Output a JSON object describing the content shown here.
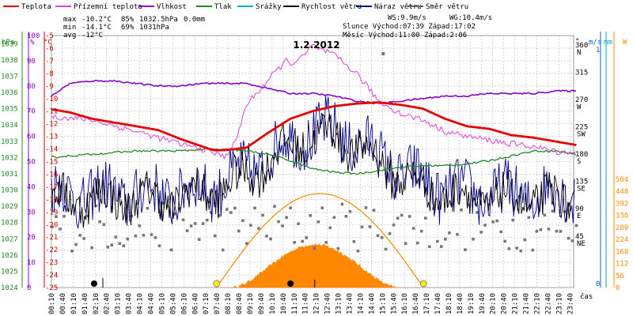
{
  "chart_data": {
    "type": "line",
    "title": "1.2.2012",
    "x_unit": "čas",
    "legend": [
      {
        "name": "Teplota",
        "color": "#e60000"
      },
      {
        "name": "Přízemní teplota",
        "color": "#e040e0"
      },
      {
        "name": "Vlhkost",
        "color": "#8800cc"
      },
      {
        "name": "Tlak",
        "color": "#228822"
      },
      {
        "name": "Srážky",
        "color": "#00aacc"
      },
      {
        "name": "Rychlost větru",
        "color": "#000000"
      },
      {
        "name": "Náraz větru",
        "color": "#000088"
      },
      {
        "name": "Směr větru",
        "color": "#666666"
      }
    ],
    "stats": {
      "max": {
        "label": "max",
        "temp": "-10.2°C",
        "hum": "85%",
        "press": "1032.5hPa",
        "rain": "0.0mm"
      },
      "min": {
        "label": "min",
        "temp": "-14.1°C",
        "hum": "69%",
        "press": "1031hPa"
      },
      "avg": {
        "label": "avg",
        "temp": "-12°C"
      },
      "ws": "WS:9.9m/s",
      "wg": "WG:10.4m/s",
      "sun": "Slunce Východ:07:39  Západ:17:02",
      "moon": "Měsíc  Východ:11:00  Západ:2:06"
    },
    "axes": {
      "hpa": {
        "label": "hPa",
        "color": "#228822",
        "ticks": [
          "1039",
          "1038",
          "1037",
          "1036",
          "1035",
          "1034",
          "1033",
          "1032",
          "1031",
          "1030",
          "1029",
          "1028",
          "1027",
          "1026",
          "1025",
          "1024"
        ]
      },
      "hum": {
        "label": "%",
        "color": "#8800cc",
        "ticks": [
          "100",
          "90",
          "80",
          "70",
          "60",
          "50",
          "40",
          "30",
          "20",
          "10",
          "0"
        ]
      },
      "temp": {
        "label": "°C",
        "color": "#cc0000",
        "ticks": [
          "-5",
          "-6",
          "-7",
          "-8",
          "-9",
          "-10",
          "-11",
          "-12",
          "-13",
          "-14",
          "-15",
          "-16",
          "-17",
          "-18",
          "-19",
          "-20",
          "-21",
          "-22",
          "-23",
          "-24",
          "-25"
        ],
        "range": [
          -25,
          -5
        ]
      },
      "dir": {
        "label": "°",
        "ticks": [
          "360",
          "315",
          "270",
          "225",
          "180",
          "135",
          "90",
          "45"
        ],
        "cards": [
          "N",
          "",
          "W",
          "SW",
          "S",
          "SE",
          "E",
          "NE"
        ]
      },
      "wind": {
        "label": "m/s",
        "color": "#0066cc",
        "ticks": [
          "0",
          "1"
        ]
      },
      "rain": {
        "label": "mm",
        "color": "#00aacc"
      },
      "solar": {
        "label": "W",
        "color": "#ff8800",
        "ticks": [
          "504",
          "448",
          "392",
          "336",
          "280",
          "224",
          "168",
          "112",
          "56",
          "0"
        ]
      }
    },
    "x_ticks": [
      "00:10",
      "00:40",
      "01:10",
      "01:40",
      "02:10",
      "02:40",
      "03:10",
      "03:40",
      "04:10",
      "04:40",
      "05:10",
      "05:40",
      "06:10",
      "06:40",
      "07:10",
      "07:40",
      "08:10",
      "08:40",
      "09:10",
      "09:40",
      "10:10",
      "10:40",
      "11:10",
      "11:40",
      "12:10",
      "12:40",
      "13:10",
      "13:40",
      "14:10",
      "14:40",
      "15:10",
      "15:40",
      "16:10",
      "16:40",
      "17:10",
      "17:40",
      "18:10",
      "18:40",
      "19:10",
      "19:40",
      "20:10",
      "20:40",
      "21:10",
      "21:40",
      "22:10",
      "22:40",
      "23:10",
      "23:40"
    ],
    "series": {
      "temperature": {
        "hours": [
          0,
          1,
          2,
          3,
          4,
          5,
          6,
          7,
          7.5,
          8,
          9,
          10,
          11,
          12,
          13,
          14,
          15,
          16,
          17,
          18,
          19,
          20,
          21,
          22,
          23,
          24
        ],
        "values": [
          -10.8,
          -11.1,
          -11.6,
          -11.9,
          -12.2,
          -12.5,
          -13.2,
          -13.8,
          -14.1,
          -14.1,
          -13.9,
          -12.7,
          -11.6,
          -11,
          -10.6,
          -10.4,
          -10.3,
          -10.5,
          -10.8,
          -11.6,
          -12.2,
          -12.4,
          -12.9,
          -13.1,
          -13.4,
          -13.7
        ]
      },
      "ground_temperature": {
        "hours": [
          0,
          2,
          4,
          6,
          7,
          8,
          8.5,
          9,
          10,
          10.8,
          11,
          11.5,
          12,
          12.5,
          13,
          14,
          15,
          16,
          17,
          18,
          19,
          20,
          21,
          22,
          23,
          24
        ],
        "values": [
          -11.4,
          -11.7,
          -12.6,
          -13.6,
          -14,
          -14.6,
          -13.5,
          -10.5,
          -8.5,
          -7,
          -7.2,
          -6.8,
          -5.8,
          -6.2,
          -6.6,
          -8,
          -10.2,
          -11.2,
          -11.7,
          -12.6,
          -13,
          -13.3,
          -13.6,
          -13.8,
          -14.2,
          -14.3
        ]
      },
      "humidity": {
        "hours": [
          0,
          1,
          2,
          3,
          4,
          5,
          6,
          7,
          8,
          9,
          10,
          11,
          12,
          13,
          14,
          15,
          16,
          17,
          18,
          19,
          20,
          21,
          22,
          23,
          24
        ],
        "values": [
          75,
          81,
          82,
          82,
          81,
          80,
          80,
          81,
          81,
          81,
          79,
          77,
          77,
          76,
          74,
          73,
          74,
          75,
          76,
          76,
          77,
          77,
          77,
          78,
          78
        ]
      },
      "pressure": {
        "hours": [
          0,
          1,
          2,
          3,
          4,
          5,
          6,
          7,
          8,
          9,
          10,
          11,
          12,
          13,
          14,
          15,
          16,
          17,
          18,
          19,
          20,
          21,
          22,
          23,
          24
        ],
        "values": [
          1032,
          1032.1,
          1032.2,
          1032.3,
          1032.4,
          1032.4,
          1032.4,
          1032.5,
          1032.5,
          1032.4,
          1032.2,
          1031.8,
          1031.3,
          1031.1,
          1031,
          1031.2,
          1031.4,
          1031.5,
          1031.5,
          1031.6,
          1031.8,
          1032.1,
          1032.4,
          1032.4,
          1032.2
        ]
      },
      "sun_peak_deg": 28,
      "sunrise_h": 7.65,
      "sunset_h": 17.03,
      "moonrise_h": 11,
      "moonset_h": 2.1,
      "solar_peak_w": 200
    }
  }
}
